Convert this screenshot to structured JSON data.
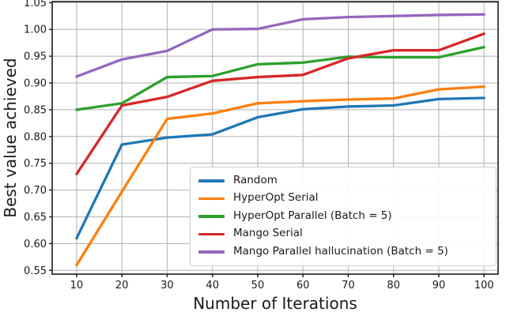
{
  "chart_data": {
    "type": "line",
    "title": "",
    "xlabel": "Number of Iterations",
    "ylabel": "Best value achieved",
    "x": [
      10,
      20,
      30,
      40,
      50,
      60,
      70,
      80,
      90,
      100
    ],
    "xlim": [
      4.6,
      103.1
    ],
    "ylim": [
      0.543,
      1.052
    ],
    "xticks": {
      "values": [
        10,
        20,
        30,
        40,
        50,
        60,
        70,
        80,
        90,
        100
      ],
      "labels": [
        "10",
        "20",
        "30",
        "40",
        "50",
        "60",
        "70",
        "80",
        "90",
        "100"
      ]
    },
    "yticks": {
      "values": [
        0.55,
        0.6,
        0.65,
        0.7,
        0.75,
        0.8,
        0.85,
        0.9,
        0.95,
        1.0,
        1.05
      ],
      "labels": [
        "0.55",
        "0.60",
        "0.65",
        "0.70",
        "0.75",
        "0.80",
        "0.85",
        "0.90",
        "0.95",
        "1.00",
        "1.05"
      ]
    },
    "grid": true,
    "grid_color": "#b0b0b0",
    "axis_color": "#1a1a1a",
    "line_width": 3.3,
    "legend_position": "lower right",
    "series": [
      {
        "name": "Random",
        "color": "#1f77b4",
        "values": [
          0.61,
          0.785,
          0.798,
          0.804,
          0.836,
          0.851,
          0.856,
          0.858,
          0.87,
          0.872
        ]
      },
      {
        "name": "HyperOpt Serial",
        "color": "#ff7f0e",
        "values": [
          0.56,
          0.697,
          0.833,
          0.843,
          0.862,
          0.866,
          0.869,
          0.871,
          0.888,
          0.893
        ]
      },
      {
        "name": "HyperOpt Parallel (Batch = 5)",
        "color": "#2ca02c",
        "values": [
          0.85,
          0.862,
          0.911,
          0.913,
          0.935,
          0.938,
          0.949,
          0.948,
          0.948,
          0.967
        ]
      },
      {
        "name": "Mango Serial",
        "color": "#d62728",
        "values": [
          0.73,
          0.858,
          0.874,
          0.904,
          0.911,
          0.915,
          0.946,
          0.961,
          0.961,
          0.992
        ]
      },
      {
        "name": "Mango Parallel hallucination (Batch = 5)",
        "color": "#9467bd",
        "values": [
          0.912,
          0.944,
          0.96,
          1.0,
          1.001,
          1.019,
          1.023,
          1.025,
          1.027,
          1.028
        ]
      }
    ]
  }
}
